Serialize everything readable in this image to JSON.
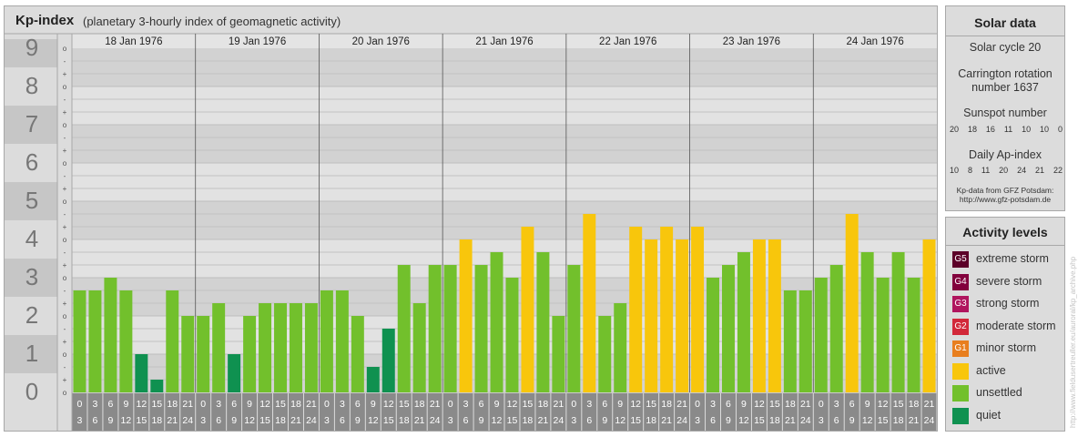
{
  "header": {
    "title": "Kp-index",
    "subtitle": "(planetary 3-hourly index of geomagnetic activity)"
  },
  "chart_data": {
    "type": "bar",
    "title": "Kp-index",
    "subtitle": "(planetary 3-hourly index of geomagnetic activity)",
    "ylim": [
      0,
      9
    ],
    "y_ticks": [
      "0",
      "1",
      "2",
      "3",
      "4",
      "5",
      "6",
      "7",
      "8",
      "9"
    ],
    "y_minor_ticks": [
      "o",
      "+",
      "-"
    ],
    "days": [
      "18 Jan 1976",
      "19 Jan 1976",
      "20 Jan 1976",
      "21 Jan 1976",
      "22 Jan 1976",
      "23 Jan 1976",
      "24 Jan 1976"
    ],
    "intervals_start": [
      "0",
      "3",
      "6",
      "9",
      "12",
      "15",
      "18",
      "21"
    ],
    "intervals_end": [
      "3",
      "6",
      "9",
      "12",
      "15",
      "18",
      "21",
      "24"
    ],
    "values": [
      2.667,
      2.667,
      3.0,
      2.667,
      1.0,
      0.333,
      2.667,
      2.0,
      2.0,
      2.333,
      1.0,
      2.0,
      2.333,
      2.333,
      2.333,
      2.333,
      2.667,
      2.667,
      2.0,
      0.667,
      1.667,
      3.333,
      2.333,
      3.333,
      3.333,
      4.0,
      3.333,
      3.667,
      3.0,
      4.333,
      3.667,
      2.0,
      3.333,
      4.667,
      2.0,
      2.333,
      4.333,
      4.0,
      4.333,
      4.0,
      4.333,
      3.0,
      3.333,
      3.667,
      4.0,
      4.0,
      2.667,
      2.667,
      3.0,
      3.333,
      4.667,
      3.667,
      3.0,
      3.667,
      3.0,
      4.0
    ],
    "level_colors": {
      "quiet": "#0f9150",
      "unsettled": "#72c02c",
      "active": "#f8c60c",
      "minor_storm": "#e87e1e"
    },
    "grid": true,
    "legend": "right"
  },
  "solar": {
    "title": "Solar data",
    "cycle_label": "Solar cycle 20",
    "carrington_label": "Carrington rotation number 1637",
    "sunspot_label": "Sunspot number",
    "sunspot_values": [
      "20",
      "18",
      "16",
      "11",
      "10",
      "10",
      "0"
    ],
    "ap_label": "Daily Ap-index",
    "ap_values": [
      "10",
      "8",
      "11",
      "20",
      "24",
      "21",
      "22"
    ],
    "source_line1": "Kp-data from GFZ Potsdam:",
    "source_line2": "http://www.gfz-potsdam.de"
  },
  "activity": {
    "title": "Activity levels",
    "items": [
      {
        "code": "G5",
        "label": "extreme storm",
        "color": "#5c0028"
      },
      {
        "code": "G4",
        "label": "severe storm",
        "color": "#82003c"
      },
      {
        "code": "G3",
        "label": "strong storm",
        "color": "#b0155e"
      },
      {
        "code": "G2",
        "label": "moderate storm",
        "color": "#d2283a"
      },
      {
        "code": "G1",
        "label": "minor storm",
        "color": "#e87e1e"
      },
      {
        "code": "",
        "label": "active",
        "color": "#f8c60c"
      },
      {
        "code": "",
        "label": "unsettled",
        "color": "#72c02c"
      },
      {
        "code": "",
        "label": "quiet",
        "color": "#0f9150"
      }
    ]
  },
  "watermark": "http://www.fieldusertreuller.eu/auroral/kp_archive.php"
}
